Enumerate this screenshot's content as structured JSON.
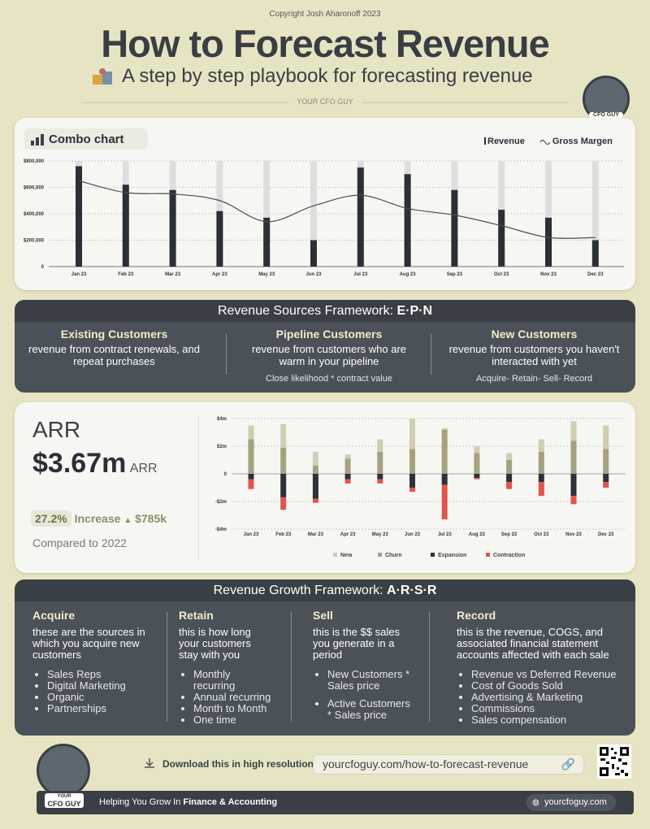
{
  "header": {
    "copyright": "Copyright Josh Aharonoff 2023",
    "title": "How to Forecast Revenue",
    "subtitle": "A step by step playbook for forecasting revenue",
    "brand": "YOUR CFO GUY",
    "badge": "CFO GUY"
  },
  "chart_data": [
    {
      "type": "combo",
      "title": "Combo chart",
      "categories": [
        "Jan 23",
        "Feb 23",
        "Mar 23",
        "Apr 23",
        "May 23",
        "Jun 23",
        "Jul 23",
        "Aug 23",
        "Sep 23",
        "Oct 23",
        "Nov 23",
        "Dec 23"
      ],
      "series": [
        {
          "name": "Revenue",
          "type": "bar",
          "color": "#2b2f36",
          "values": [
            760000,
            620000,
            580000,
            420000,
            370000,
            200000,
            750000,
            700000,
            580000,
            430000,
            370000,
            200000
          ]
        },
        {
          "name": "Gross Margen",
          "type": "line",
          "color": "#4a4e55",
          "values": [
            650000,
            560000,
            550000,
            500000,
            340000,
            460000,
            540000,
            440000,
            390000,
            310000,
            220000,
            220000
          ]
        }
      ],
      "ylim": [
        0,
        800000
      ],
      "yticks": [
        0,
        {
          "value": 200000,
          "label": "$200,000"
        },
        {
          "value": 400000,
          "label": "$400,000"
        },
        {
          "value": 600000,
          "label": "$600,000"
        },
        {
          "value": 800000,
          "label": "$800,000"
        }
      ],
      "grid": true,
      "legend": "top-right"
    },
    {
      "type": "stacked_bar",
      "categories": [
        "Jan 23",
        "Feb 23",
        "Mar 23",
        "Apr 23",
        "May 23",
        "Jun 23",
        "Jul 23",
        "Aug 23",
        "Sep 23",
        "Oct 23",
        "Nov 23",
        "Dec 23"
      ],
      "series": [
        {
          "name": "New",
          "color": "#cfcdb2",
          "values": [
            1.0,
            1.7,
            1.0,
            0.3,
            0.9,
            2.2,
            0.1,
            0.5,
            0.5,
            0.9,
            1.4,
            1.7
          ]
        },
        {
          "name": "Churn",
          "color": "#a3a27e",
          "values": [
            2.5,
            1.9,
            0.6,
            1.1,
            1.6,
            1.8,
            3.2,
            1.5,
            1.0,
            1.6,
            2.4,
            1.8
          ]
        },
        {
          "name": "Expansion",
          "color": "#2d3239",
          "values": [
            -0.4,
            -1.7,
            -1.8,
            -0.4,
            -0.4,
            -1.0,
            -0.8,
            -0.3,
            -0.6,
            -0.6,
            -1.6,
            -0.6
          ]
        },
        {
          "name": "Contraction",
          "color": "#e0554e",
          "values": [
            -0.7,
            -0.9,
            -0.3,
            -0.3,
            -0.3,
            -0.3,
            -2.5,
            -0.1,
            -0.5,
            -1.0,
            -0.6,
            -0.4
          ]
        }
      ],
      "ylim": [
        -4,
        4
      ],
      "yticks": [
        {
          "value": -4,
          "label": "-$4m"
        },
        {
          "value": -2,
          "label": "-$2m"
        },
        0,
        {
          "value": 2,
          "label": "$2m"
        },
        {
          "value": 4,
          "label": "$4m"
        }
      ],
      "grid": true,
      "legend": "bottom"
    }
  ],
  "epn": {
    "title": "Revenue Sources Framework:",
    "emphasis": "E·P·N",
    "columns": [
      {
        "heading": "Existing Customers",
        "text": "revenue from contract renewals, and repeat purchases"
      },
      {
        "heading": "Pipeline Customers",
        "text": "revenue from customers who are warm in your pipeline",
        "note": "Close likelihood * contract value"
      },
      {
        "heading": "New Customers",
        "text": "revenue from customers you haven't interacted with yet",
        "note": "Acquire- Retain- Sell- Record"
      }
    ]
  },
  "arr": {
    "label": "ARR",
    "value": "$3.67m",
    "unit": "ARR",
    "change_pct": "27.2%",
    "change_word": "Increase",
    "change_amount": "$785k",
    "comparison": "Compared to 2022"
  },
  "arsr": {
    "title": "Revenue Growth Framework:",
    "emphasis": "A·R·S·R",
    "columns": [
      {
        "heading": "Acquire",
        "description": "these are the sources in which you acquire new customers",
        "items": [
          "Sales Reps",
          "Digital Marketing",
          "Organic",
          "Partnerships"
        ]
      },
      {
        "heading": "Retain",
        "description": "this is how long your customers stay with you",
        "items": [
          "Monthly recurring",
          "Annual recurring",
          "Month to Month",
          "One time"
        ]
      },
      {
        "heading": "Sell",
        "description": "this is the $$ sales you generate in a period",
        "items": [
          "New Customers * Sales price",
          "Active Customers * Sales price"
        ]
      },
      {
        "heading": "Record",
        "description": "this is the revenue, COGS, and associated financial statement accounts affected with each sale",
        "items": [
          "Revenue vs Deferred Revenue",
          "Cost of Goods Sold",
          "Advertising & Marketing",
          "Commissions",
          "Sales compensation"
        ]
      }
    ]
  },
  "footer": {
    "download_label": "Download this in high resolution:",
    "url": "yourcfoguy.com/how-to-forecast-revenue",
    "tagline": "Helping You Grow In",
    "tagline_emphasis": "Finance & Accounting",
    "site": "yourcfoguy.com",
    "badge_top": "YOUR",
    "badge": "CFO GUY"
  }
}
